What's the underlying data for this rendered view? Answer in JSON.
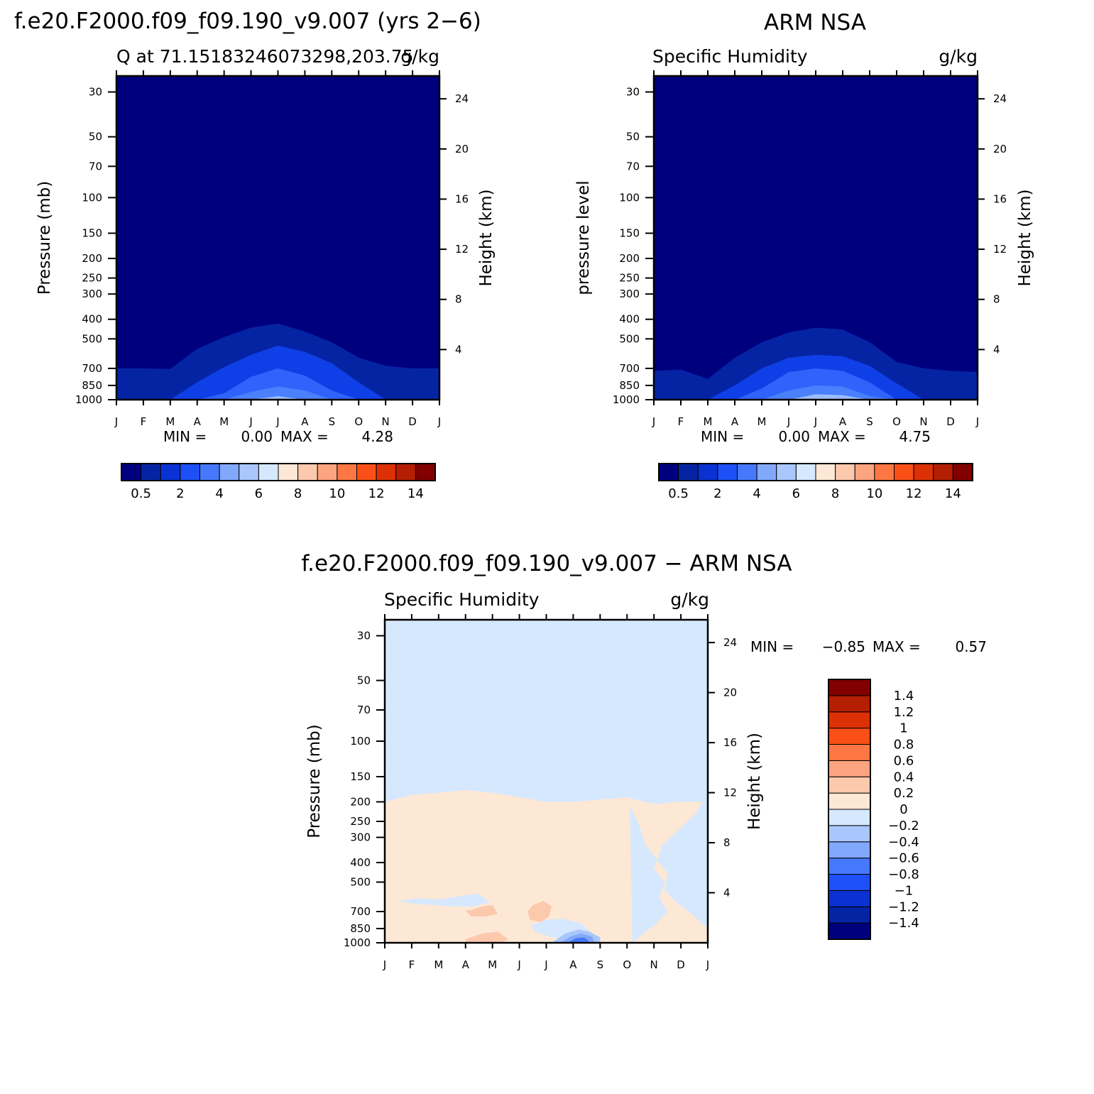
{
  "figure": {
    "top_left_title": "f.e20.F2000.f09_f09.190_v9.007 (yrs 2−6)",
    "top_right_title": "ARM NSA",
    "bottom_title": "f.e20.F2000.f09_f09.190_v9.007 − ARM NSA"
  },
  "chart_data": [
    {
      "type": "heatmap",
      "panel": "model",
      "subtitle_left": "Q at 71.15183246073298,203.75",
      "subtitle_right": "g/kg",
      "xlabel": "",
      "ylabel": "Pressure (mb)",
      "ylabel_right": "Height (km)",
      "x_tick_labels": [
        "J",
        "F",
        "M",
        "A",
        "M",
        "J",
        "J",
        "A",
        "S",
        "O",
        "N",
        "D",
        "J"
      ],
      "y_ticks": [
        30,
        50,
        70,
        100,
        150,
        200,
        250,
        300,
        400,
        500,
        700,
        850,
        1000
      ],
      "y_right_ticks": [
        24,
        20,
        16,
        12,
        8,
        4
      ],
      "ylim": [
        1000,
        25
      ],
      "ylog": true,
      "min_label": "MIN =",
      "min_value": "0.00",
      "max_label": "MAX =",
      "max_value": "4.28",
      "contours_top_pressure_mb": [
        {
          "level": 0.5,
          "color": "#0524a4",
          "top": [
            700,
            700,
            705,
            560,
            490,
            440,
            420,
            460,
            520,
            620,
            680,
            700,
            700
          ]
        },
        {
          "level": 1,
          "color": "#0f3fe6",
          "top": [
            1000,
            1000,
            1000,
            820,
            690,
            600,
            540,
            580,
            660,
            820,
            1000,
            1000,
            1000
          ]
        },
        {
          "level": 2,
          "color": "#2f63fb",
          "top": [
            1000,
            1000,
            1000,
            1000,
            930,
            770,
            700,
            760,
            900,
            1000,
            1000,
            1000,
            1000
          ]
        },
        {
          "level": 3,
          "color": "#4a80fc",
          "top": [
            1000,
            1000,
            1000,
            1000,
            1000,
            915,
            860,
            900,
            1000,
            1000,
            1000,
            1000,
            1000
          ]
        },
        {
          "level": 4,
          "color": "#9bbdfd",
          "top": [
            1000,
            1000,
            1000,
            1000,
            1000,
            1000,
            960,
            1000,
            1000,
            1000,
            1000,
            1000,
            1000
          ]
        }
      ],
      "colorbar": {
        "colors": [
          "#00007f",
          "#0524a4",
          "#0a32d2",
          "#1e50f8",
          "#4678fb",
          "#82a8fc",
          "#aac7fd",
          "#d6e8fe",
          "#fde8d6",
          "#fcc9ad",
          "#fca47f",
          "#fc7743",
          "#fa4f17",
          "#dc3005",
          "#b41e02",
          "#820000"
        ],
        "labels": [
          "0.5",
          "2",
          "4",
          "6",
          "8",
          "10",
          "12",
          "14"
        ]
      }
    },
    {
      "type": "heatmap",
      "panel": "observations",
      "subtitle_left": "Specific Humidity",
      "subtitle_right": "g/kg",
      "xlabel": "",
      "ylabel": "pressure level",
      "ylabel_right": "Height (km)",
      "x_tick_labels": [
        "J",
        "F",
        "M",
        "A",
        "M",
        "J",
        "J",
        "A",
        "S",
        "O",
        "N",
        "D",
        "J"
      ],
      "y_ticks": [
        30,
        50,
        70,
        100,
        150,
        200,
        250,
        300,
        400,
        500,
        700,
        850,
        1000
      ],
      "y_right_ticks": [
        24,
        20,
        16,
        12,
        8,
        4
      ],
      "ylim": [
        1000,
        25
      ],
      "ylog": true,
      "min_label": "MIN =",
      "min_value": "0.00",
      "max_label": "MAX =",
      "max_value": "4.75",
      "contours_top_pressure_mb": [
        {
          "level": 0.5,
          "color": "#0524a4",
          "top": [
            720,
            710,
            790,
            620,
            520,
            465,
            440,
            450,
            520,
            650,
            700,
            720,
            730
          ]
        },
        {
          "level": 1,
          "color": "#0f3fe6",
          "top": [
            1000,
            1000,
            1000,
            850,
            700,
            620,
            600,
            610,
            680,
            830,
            1000,
            1000,
            1000
          ]
        },
        {
          "level": 2,
          "color": "#2f63fb",
          "top": [
            1000,
            1000,
            1000,
            1000,
            880,
            730,
            700,
            720,
            820,
            1000,
            1000,
            1000,
            1000
          ]
        },
        {
          "level": 3,
          "color": "#4a80fc",
          "top": [
            1000,
            1000,
            1000,
            1000,
            1000,
            900,
            850,
            860,
            960,
            1000,
            1000,
            1000,
            1000
          ]
        },
        {
          "level": 4,
          "color": "#9bbdfd",
          "top": [
            1000,
            1000,
            1000,
            1000,
            1000,
            1000,
            940,
            950,
            1000,
            1000,
            1000,
            1000,
            1000
          ]
        }
      ],
      "colorbar": {
        "colors": [
          "#00007f",
          "#0524a4",
          "#0a32d2",
          "#1e50f8",
          "#4678fb",
          "#82a8fc",
          "#aac7fd",
          "#d6e8fe",
          "#fde8d6",
          "#fcc9ad",
          "#fca47f",
          "#fc7743",
          "#fa4f17",
          "#dc3005",
          "#b41e02",
          "#820000"
        ],
        "labels": [
          "0.5",
          "2",
          "4",
          "6",
          "8",
          "10",
          "12",
          "14"
        ]
      }
    },
    {
      "type": "heatmap",
      "panel": "difference",
      "subtitle_left": "Specific Humidity",
      "subtitle_right": "g/kg",
      "xlabel": "",
      "ylabel": "Pressure (mb)",
      "ylabel_right": "Height (km)",
      "x_tick_labels": [
        "J",
        "F",
        "M",
        "A",
        "M",
        "J",
        "J",
        "A",
        "S",
        "O",
        "N",
        "D",
        "J"
      ],
      "y_ticks": [
        30,
        50,
        70,
        100,
        150,
        200,
        250,
        300,
        400,
        500,
        700,
        850,
        1000
      ],
      "y_right_ticks": [
        24,
        20,
        16,
        12,
        8,
        4
      ],
      "ylim": [
        1000,
        25
      ],
      "ylog": true,
      "min_label": "MIN =",
      "min_value": "−0.85",
      "max_label": "MAX =",
      "max_value": "0.57",
      "background_color": "#d6e8fe",
      "positive_region": {
        "level": 0,
        "color": "#fde8d6",
        "top": [
          200,
          185,
          180,
          175,
          180,
          190,
          200,
          200,
          195,
          190,
          205,
          200,
          200
        ]
      },
      "blue_intrusions": [
        {
          "x": [
            9.2,
            9.6,
            10.1,
            10.5,
            10.2,
            10.4,
            10.0,
            10.3,
            12.0,
            12.0,
            11.4,
            10.9,
            10.4,
            10.5,
            10.2,
            9.7,
            9.4,
            9.1
          ],
          "p": [
            1000,
            900,
            800,
            700,
            600,
            500,
            430,
            330,
            200,
            850,
            720,
            640,
            550,
            450,
            400,
            330,
            250,
            210
          ]
        },
        {
          "x": [
            0.5,
            1.2,
            2.0,
            2.7,
            3.5,
            3.9,
            3.3,
            2.6,
            1.8,
            1.1,
            0.5
          ],
          "p": [
            620,
            600,
            610,
            590,
            570,
            630,
            660,
            660,
            650,
            640,
            620
          ]
        },
        {
          "x": [
            5.4,
            6.0,
            6.6,
            7.3,
            7.6,
            7.3,
            6.8,
            6.2,
            5.6,
            5.4
          ],
          "p": [
            820,
            770,
            760,
            800,
            870,
            930,
            960,
            940,
            880,
            820
          ]
        },
        {
          "x": [
            11.3,
            11.8,
            12.0,
            12.0,
            11.6,
            11.2,
            11.3
          ],
          "p": [
            260,
            200,
            200,
            620,
            560,
            400,
            260
          ]
        }
      ],
      "positive_patches": [
        {
          "level": 0.2,
          "color": "#fcc9ad",
          "x": [
            3.2,
            3.6,
            4.0,
            4.2,
            3.8,
            3.2,
            3.0
          ],
          "p": [
            690,
            660,
            650,
            720,
            740,
            740,
            690
          ]
        },
        {
          "level": 0.2,
          "color": "#fcc9ad",
          "x": [
            5.5,
            5.9,
            6.2,
            6.1,
            5.8,
            5.4,
            5.3
          ],
          "p": [
            650,
            620,
            660,
            740,
            790,
            770,
            700
          ]
        },
        {
          "level": 0.2,
          "color": "#fcc9ad",
          "x": [
            3.0,
            3.6,
            4.2,
            4.6,
            4.3,
            3.6,
            3.0
          ],
          "p": [
            960,
            900,
            880,
            960,
            1000,
            1000,
            1000
          ]
        }
      ],
      "negative_patches": [
        {
          "level": -0.2,
          "color": "#aac7fd",
          "x": [
            6.2,
            6.7,
            7.2,
            7.6,
            8.0,
            8.0,
            7.2,
            6.6,
            6.2
          ],
          "p": [
            1000,
            900,
            860,
            880,
            940,
            1000,
            1000,
            1000,
            1000
          ]
        },
        {
          "level": -0.4,
          "color": "#82a8fc",
          "x": [
            6.5,
            6.9,
            7.3,
            7.7,
            7.8,
            7.0,
            6.5
          ],
          "p": [
            1000,
            930,
            900,
            930,
            1000,
            1000,
            1000
          ]
        },
        {
          "level": -0.6,
          "color": "#4678fb",
          "x": [
            6.8,
            7.1,
            7.4,
            7.6,
            7.4,
            6.9,
            6.8
          ],
          "p": [
            1000,
            950,
            940,
            980,
            1000,
            1000,
            1000
          ]
        }
      ],
      "colorbar": {
        "colors": [
          "#00007f",
          "#0524a4",
          "#0a32d2",
          "#1e50f8",
          "#4678fb",
          "#82a8fc",
          "#aac7fd",
          "#d6e8fe",
          "#fde8d6",
          "#fcc9ad",
          "#fca47f",
          "#fc7743",
          "#fa4f17",
          "#dc3005",
          "#b41e02",
          "#820000"
        ],
        "labels": [
          "1.4",
          "1.2",
          "1",
          "0.8",
          "0.6",
          "0.4",
          "0.2",
          "0",
          "−0.2",
          "−0.4",
          "−0.6",
          "−0.8",
          "−1",
          "−1.2",
          "−1.4"
        ]
      }
    }
  ]
}
